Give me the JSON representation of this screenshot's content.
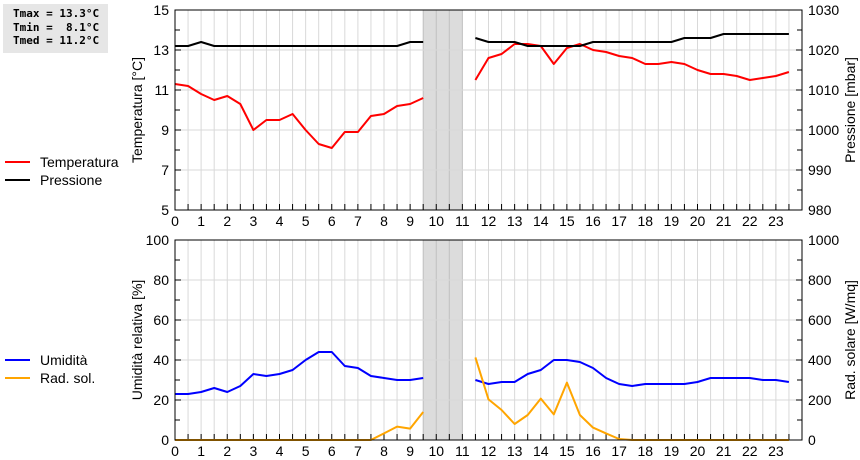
{
  "stats": {
    "tmax": "Tmax = 13.3°C",
    "tmin": "Tmin =  8.1°C",
    "tmed": "Tmed = 11.2°C"
  },
  "chart_data": [
    {
      "type": "line",
      "ylabel": "Temperatura [°C]",
      "y2label": "Pressione [mbar]",
      "ylim": [
        5,
        15
      ],
      "y2lim": [
        980,
        1030
      ],
      "xlim": [
        0,
        24
      ],
      "x_ticks": [
        "0",
        "1",
        "2",
        "3",
        "4",
        "5",
        "6",
        "7",
        "8",
        "9",
        "10",
        "11",
        "12",
        "13",
        "14",
        "15",
        "16",
        "17",
        "18",
        "19",
        "20",
        "21",
        "22",
        "23"
      ],
      "y_ticks": [
        "5",
        "7",
        "9",
        "11",
        "13",
        "15"
      ],
      "y2_ticks": [
        "980",
        "990",
        "1000",
        "1010",
        "1020",
        "1030"
      ],
      "grid": true,
      "legend_placement": "left",
      "missing_data_band": [
        9.5,
        11
      ],
      "x": [
        0,
        0.5,
        1,
        1.5,
        2,
        2.5,
        3,
        3.5,
        4,
        4.5,
        5,
        5.5,
        6,
        6.5,
        7,
        7.5,
        8,
        8.5,
        9,
        9.5,
        10,
        10.5,
        11,
        11.5,
        12,
        12.5,
        13,
        13.5,
        14,
        14.5,
        15,
        15.5,
        16,
        16.5,
        17,
        17.5,
        18,
        18.5,
        19,
        19.5,
        20,
        20.5,
        21,
        21.5,
        22,
        22.5,
        23,
        23.5
      ],
      "series": [
        {
          "name": "Temperatura",
          "color": "#ff0000",
          "axis": "left",
          "values": [
            11.3,
            11.2,
            10.8,
            10.5,
            10.7,
            10.3,
            9.0,
            9.5,
            9.5,
            9.8,
            9.0,
            8.3,
            8.1,
            8.9,
            8.9,
            9.7,
            9.8,
            10.2,
            10.3,
            10.6,
            null,
            null,
            null,
            11.5,
            12.6,
            12.8,
            13.3,
            13.3,
            13.2,
            12.3,
            13.1,
            13.3,
            13.0,
            12.9,
            12.7,
            12.6,
            12.3,
            12.3,
            12.4,
            12.3,
            12.0,
            11.8,
            11.8,
            11.7,
            11.5,
            11.6,
            11.7,
            11.9
          ]
        },
        {
          "name": "Pressione",
          "color": "#000000",
          "axis": "right",
          "values": [
            1021,
            1021,
            1022,
            1021,
            1021,
            1021,
            1021,
            1021,
            1021,
            1021,
            1021,
            1021,
            1021,
            1021,
            1021,
            1021,
            1021,
            1021,
            1022,
            1022,
            null,
            null,
            null,
            1023,
            1022,
            1022,
            1022,
            1021,
            1021,
            1021,
            1021,
            1021,
            1022,
            1022,
            1022,
            1022,
            1022,
            1022,
            1022,
            1023,
            1023,
            1023,
            1024,
            1024,
            1024,
            1024,
            1024,
            1024
          ]
        }
      ]
    },
    {
      "type": "line",
      "ylabel": "Umidità relativa [%]",
      "y2label": "Rad. solare [W/mq]",
      "ylim": [
        0,
        100
      ],
      "y2lim": [
        0,
        1000
      ],
      "xlim": [
        0,
        24
      ],
      "x_ticks": [
        "0",
        "1",
        "2",
        "3",
        "4",
        "5",
        "6",
        "7",
        "8",
        "9",
        "10",
        "11",
        "12",
        "13",
        "14",
        "15",
        "16",
        "17",
        "18",
        "19",
        "20",
        "21",
        "22",
        "23"
      ],
      "y_ticks": [
        "0",
        "20",
        "40",
        "60",
        "80",
        "100"
      ],
      "y2_ticks": [
        "0",
        "200",
        "400",
        "600",
        "800",
        "1000"
      ],
      "grid": true,
      "legend_placement": "left",
      "missing_data_band": [
        9.5,
        11
      ],
      "x": [
        0,
        0.5,
        1,
        1.5,
        2,
        2.5,
        3,
        3.5,
        4,
        4.5,
        5,
        5.5,
        6,
        6.5,
        7,
        7.5,
        8,
        8.5,
        9,
        9.5,
        10,
        10.5,
        11,
        11.5,
        12,
        12.5,
        13,
        13.5,
        14,
        14.5,
        15,
        15.5,
        16,
        16.5,
        17,
        17.5,
        18,
        18.5,
        19,
        19.5,
        20,
        20.5,
        21,
        21.5,
        22,
        22.5,
        23,
        23.5
      ],
      "series": [
        {
          "name": "Umidità",
          "color": "#0000ff",
          "axis": "left",
          "values": [
            23,
            23,
            24,
            26,
            24,
            27,
            33,
            32,
            33,
            35,
            40,
            44,
            44,
            37,
            36,
            32,
            31,
            30,
            30,
            31,
            null,
            null,
            null,
            30,
            28,
            29,
            29,
            33,
            35,
            40,
            40,
            39,
            36,
            31,
            28,
            27,
            28,
            28,
            28,
            28,
            29,
            31,
            31,
            31,
            31,
            30,
            30,
            29
          ]
        },
        {
          "name": "Rad. sol.",
          "color": "#ffa500",
          "axis": "right",
          "values": [
            0,
            0,
            0,
            0,
            0,
            0,
            0,
            0,
            0,
            0,
            0,
            0,
            0,
            0,
            0,
            0,
            33,
            67,
            57,
            140,
            null,
            null,
            null,
            413,
            203,
            150,
            80,
            125,
            207,
            128,
            287,
            125,
            62,
            33,
            5,
            0,
            0,
            0,
            0,
            0,
            0,
            0,
            0,
            0,
            0,
            0,
            0,
            0
          ]
        }
      ]
    }
  ]
}
